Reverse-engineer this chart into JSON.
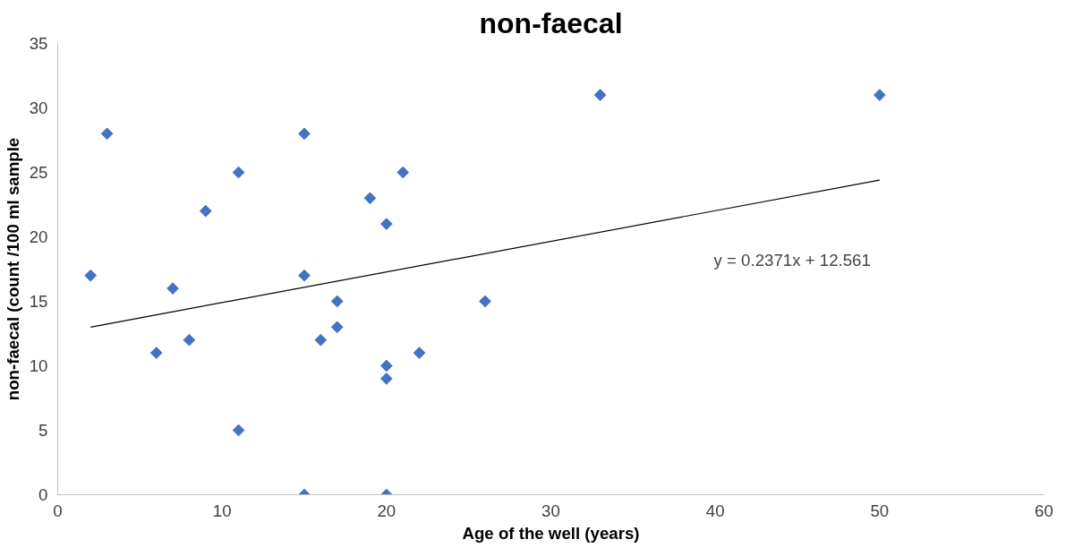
{
  "chart_data": {
    "type": "scatter",
    "title": "non-faecal",
    "xlabel": "Age of the well (years)",
    "ylabel": "non-faecal (count /100 ml sample",
    "xlim": [
      0,
      60
    ],
    "xticks": [
      0,
      10,
      20,
      30,
      40,
      50,
      60
    ],
    "ylim": [
      0,
      35
    ],
    "yticks": [
      0,
      5,
      10,
      15,
      20,
      25,
      30,
      35
    ],
    "grid": false,
    "marker": "diamond",
    "series": [
      {
        "color": "#4472c4",
        "x": [
          2,
          3,
          6,
          7,
          8,
          9,
          11,
          11,
          15,
          15,
          15,
          16,
          17,
          17,
          19,
          20,
          20,
          20,
          20,
          21,
          22,
          26,
          33,
          50
        ],
        "values": [
          17,
          28,
          11,
          16,
          12,
          22,
          25,
          5,
          28,
          17,
          0,
          12,
          15,
          13,
          23,
          21,
          10,
          9,
          0,
          25,
          11,
          15,
          31,
          31
        ]
      },
      {
        "type": "line",
        "color": "#000000",
        "line_style": "solid",
        "marker": "none",
        "x": [
          2,
          50
        ],
        "values": [
          13.0,
          24.4
        ]
      }
    ],
    "annotations": [
      "y = 0.2371x + 12.561"
    ]
  }
}
